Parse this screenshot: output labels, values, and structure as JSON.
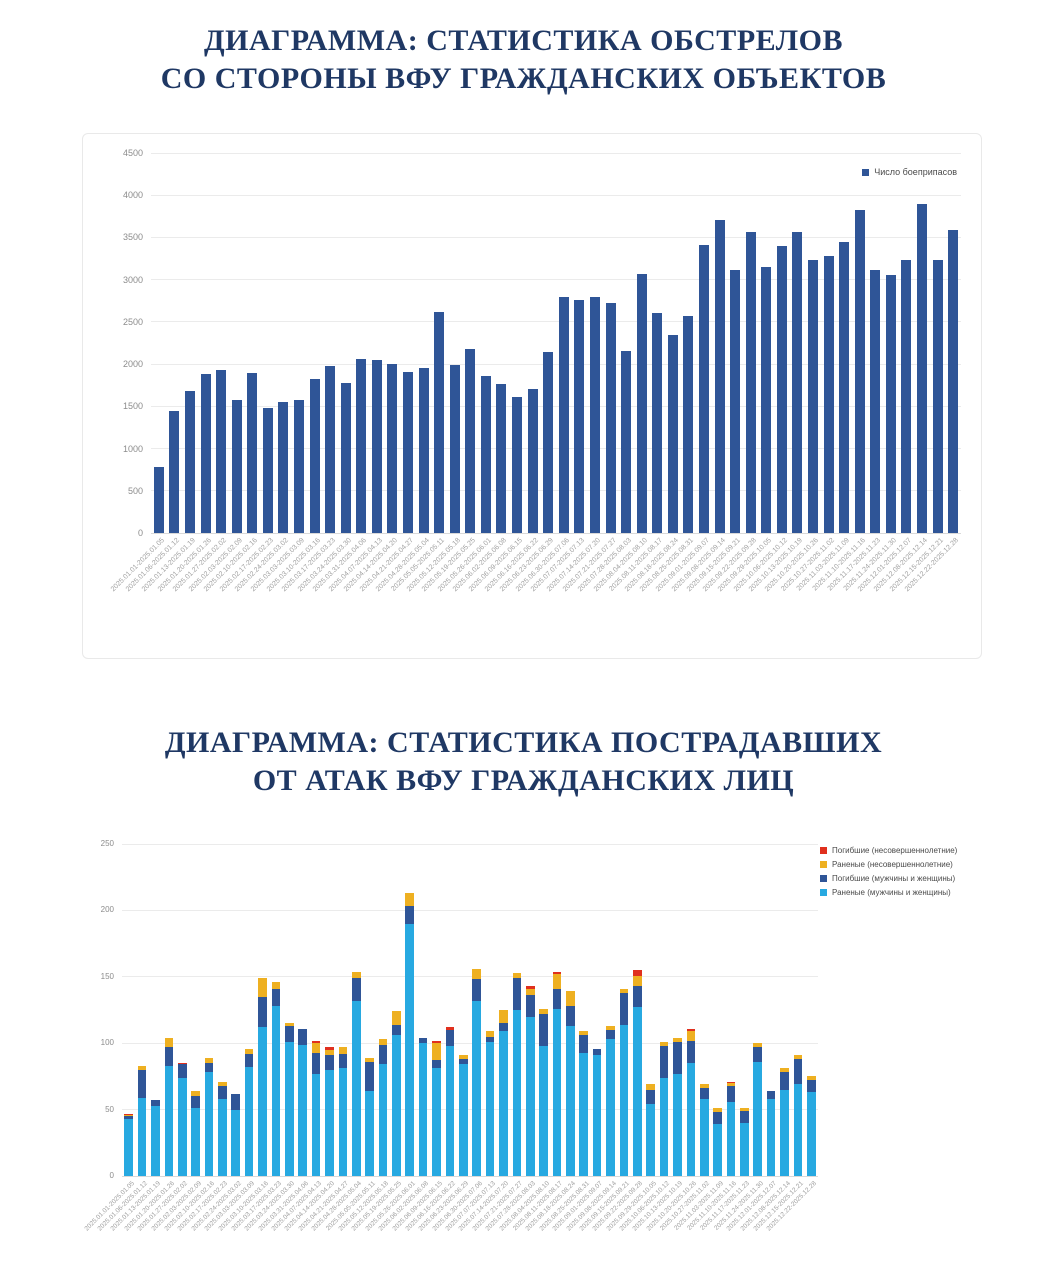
{
  "titles": {
    "chart1_line1": "ДИАГРАММА: СТАТИСТИКА ОБСТРЕЛОВ",
    "chart1_line2": "СО СТОРОНЫ ВФУ ГРАЖДАНСКИХ ОБЪЕКТОВ",
    "chart2_line1": "ДИАГРАММА: СТАТИСТИКА ПОСТРАДАВШИХ",
    "chart2_line2": "ОТ АТАК ВФУ ГРАЖДАНСКИХ ЛИЦ"
  },
  "colors": {
    "title_navy": "#1F3864",
    "bar_blue": "#2F5597",
    "wounded_cyan": "#27A9E1",
    "killed_blue": "#2F5597",
    "wounded_minor_orange": "#EEB021",
    "killed_minor_red": "#E0301E",
    "gridline": "#EBEBEB",
    "tick_text": "#8C8C8C"
  },
  "chart_data": [
    {
      "type": "bar",
      "title": "ДИАГРАММА: СТАТИСТИКА ОБСТРЕЛОВ СО СТОРОНЫ ВФУ ГРАЖДАНСКИХ ОБЪЕКТОВ",
      "xlabel": "",
      "ylabel": "",
      "ylim": [
        0,
        4500
      ],
      "ytick_step": 500,
      "grid": true,
      "legend_position": "top-right",
      "legend": [
        {
          "label": "Число боеприпасов",
          "color": "#2F5597"
        }
      ],
      "categories": [
        "2025.01.01-2025.01.05",
        "2025.01.06-2025.01.12",
        "2025.01.13-2025.01.19",
        "2025.01.20-2025.01.26",
        "2025.01.27-2025.02.02",
        "2025.02.03-2025.02.09",
        "2025.02.10-2025.02.16",
        "2025.02.17-2025.02.23",
        "2025.02.24-2025.03.02",
        "2025.03.03-2025.03.09",
        "2025.03.10-2025.03.16",
        "2025.03.17-2025.03.23",
        "2025.03.24-2025.03.30",
        "2025.03.31-2025.04.06",
        "2025.04.07-2025.04.13",
        "2025.04.14-2025.04.20",
        "2025.04.21-2025.04.27",
        "2025.04.28-2025.05.04",
        "2025.05.05-2025.05.11",
        "2025.05.12-2025.05.18",
        "2025.05.19-2025.05.25",
        "2025.05.26-2025.06.01",
        "2025.06.02-2025.06.08",
        "2025.06.09-2025.06.15",
        "2025.06.16-2025.06.22",
        "2025.06.23-2025.06.29",
        "2025.06.30-2025.07.06",
        "2025.07.07-2025.07.13",
        "2025.07.14-2025.07.20",
        "2025.07.21-2025.07.27",
        "2025.07.28-2025.08.03",
        "2025.08.04-2025.08.10",
        "2025.08.11-2025.08.17",
        "2025.08.18-2025.08.24",
        "2025.08.25-2025.08.31",
        "2025.09.01-2025.09.07",
        "2025.09.08-2025.09.14",
        "2025.09.15-2025.09.21",
        "2025.09.22-2025.09.28",
        "2025.09.29-2025.10.05",
        "2025.10.06-2025.10.12",
        "2025.10.13-2025.10.19",
        "2025.10.20-2025.10.26",
        "2025.10.27-2025.11.02",
        "2025.11.03-2025.11.09",
        "2025.11.10-2025.11.16",
        "2025.11.17-2025.11.23",
        "2025.11.24-2025.11.30",
        "2025.12.01-2025.12.07",
        "2025.12.08-2025.12.14",
        "2025.12.15-2025.12.21",
        "2025.12.22-2025.12.28"
      ],
      "values": [
        780,
        1440,
        1680,
        1880,
        1930,
        1570,
        1900,
        1480,
        1550,
        1570,
        1820,
        1980,
        1780,
        2060,
        2050,
        2000,
        1910,
        1960,
        2620,
        1990,
        2180,
        1860,
        1770,
        1610,
        1710,
        2140,
        2800,
        2760,
        2790,
        2720,
        2150,
        3070,
        2610,
        2340,
        2570,
        3410,
        3710,
        3110,
        3570,
        3150,
        3400,
        3570,
        3230,
        3280,
        3450,
        3820,
        3110,
        3060,
        3230,
        3900,
        3230,
        3590
      ],
      "bar_color": "#2F5597"
    },
    {
      "type": "bar",
      "stacked": true,
      "title": "ДИАГРАММА: СТАТИСТИКА ПОСТРАДАВШИХ ОТ АТАК ВФУ ГРАЖДАНСКИХ ЛИЦ",
      "xlabel": "",
      "ylabel": "",
      "ylim": [
        0,
        250
      ],
      "ytick_step": 50,
      "grid": true,
      "legend_position": "top-right",
      "legend": [
        {
          "label": "Погибшие (несовершеннолетние)",
          "color": "#E0301E"
        },
        {
          "label": "Раненые (несовершеннолетние)",
          "color": "#EEB021"
        },
        {
          "label": "Погибшие (мужчины и женщины)",
          "color": "#2F5597"
        },
        {
          "label": "Раненые (мужчины и женщины)",
          "color": "#27A9E1"
        }
      ],
      "categories": [
        "2025.01.01-2025.01.05",
        "2025.01.06-2025.01.12",
        "2025.01.13-2025.01.19",
        "2025.01.20-2025.01.26",
        "2025.01.27-2025.02.02",
        "2025.02.03-2025.02.09",
        "2025.02.10-2025.02.16",
        "2025.02.17-2025.02.23",
        "2025.02.24-2025.03.02",
        "2025.03.03-2025.03.09",
        "2025.03.10-2025.03.16",
        "2025.03.17-2025.03.23",
        "2025.03.24-2025.03.30",
        "2025.03.31-2025.04.06",
        "2025.04.07-2025.04.13",
        "2025.04.14-2025.04.20",
        "2025.04.21-2025.04.27",
        "2025.04.28-2025.05.04",
        "2025.05.05-2025.05.11",
        "2025.05.12-2025.05.18",
        "2025.05.19-2025.05.25",
        "2025.05.26-2025.06.01",
        "2025.06.02-2025.06.08",
        "2025.06.09-2025.06.15",
        "2025.06.16-2025.06.22",
        "2025.06.23-2025.06.29",
        "2025.06.30-2025.07.06",
        "2025.07.07-2025.07.13",
        "2025.07.14-2025.07.20",
        "2025.07.21-2025.07.27",
        "2025.07.28-2025.08.03",
        "2025.08.04-2025.08.10",
        "2025.08.11-2025.08.17",
        "2025.08.18-2025.08.24",
        "2025.08.25-2025.08.31",
        "2025.09.01-2025.09.07",
        "2025.09.08-2025.09.14",
        "2025.09.15-2025.09.21",
        "2025.09.22-2025.09.28",
        "2025.09.29-2025.10.05",
        "2025.10.06-2025.10.12",
        "2025.10.13-2025.10.19",
        "2025.10.20-2025.10.26",
        "2025.10.27-2025.11.02",
        "2025.11.03-2025.11.09",
        "2025.11.10-2025.11.16",
        "2025.11.17-2025.11.23",
        "2025.11.24-2025.11.30",
        "2025.12.01-2025.12.07",
        "2025.12.08-2025.12.14",
        "2025.12.15-2025.12.21",
        "2025.12.22-2025.12.28"
      ],
      "series": [
        {
          "name": "Раненые (мужчины и женщины)",
          "color": "#27A9E1",
          "values": [
            43,
            59,
            53,
            83,
            74,
            51,
            78,
            58,
            50,
            82,
            112,
            128,
            101,
            99,
            77,
            80,
            81,
            132,
            64,
            84,
            106,
            190,
            100,
            81,
            98,
            84,
            132,
            101,
            109,
            125,
            120,
            98,
            126,
            113,
            93,
            91,
            103,
            114,
            127,
            54,
            74,
            77,
            85,
            58,
            39,
            56,
            40,
            86,
            58,
            65,
            69,
            63
          ]
        },
        {
          "name": "Погибшие (мужчины и женщины)",
          "color": "#2F5597",
          "values": [
            2,
            21,
            4,
            14,
            10,
            9,
            7,
            10,
            12,
            10,
            23,
            13,
            12,
            12,
            16,
            11,
            11,
            17,
            22,
            15,
            8,
            13,
            4,
            6,
            12,
            4,
            16,
            4,
            6,
            24,
            16,
            24,
            15,
            15,
            13,
            5,
            7,
            24,
            16,
            11,
            24,
            24,
            17,
            8,
            9,
            12,
            9,
            11,
            6,
            13,
            19,
            9
          ]
        },
        {
          "name": "Раненые (несовершеннолетние)",
          "color": "#EEB021",
          "values": [
            1,
            3,
            0,
            7,
            0,
            4,
            4,
            3,
            0,
            4,
            14,
            5,
            2,
            0,
            7,
            4,
            5,
            5,
            3,
            4,
            10,
            10,
            0,
            13,
            0,
            3,
            8,
            4,
            10,
            4,
            5,
            4,
            11,
            11,
            3,
            0,
            3,
            3,
            8,
            4,
            3,
            3,
            7,
            3,
            3,
            2,
            2,
            3,
            0,
            3,
            3,
            3
          ]
        },
        {
          "name": "Погибшие (несовершеннолетние)",
          "color": "#E0301E",
          "values": [
            1,
            0,
            0,
            0,
            1,
            0,
            0,
            0,
            0,
            0,
            0,
            0,
            0,
            0,
            2,
            2,
            0,
            0,
            0,
            0,
            0,
            0,
            0,
            2,
            2,
            0,
            0,
            0,
            0,
            0,
            2,
            0,
            2,
            0,
            0,
            0,
            0,
            0,
            4,
            0,
            0,
            0,
            2,
            0,
            0,
            1,
            0,
            0,
            0,
            0,
            0,
            0
          ]
        }
      ]
    }
  ]
}
